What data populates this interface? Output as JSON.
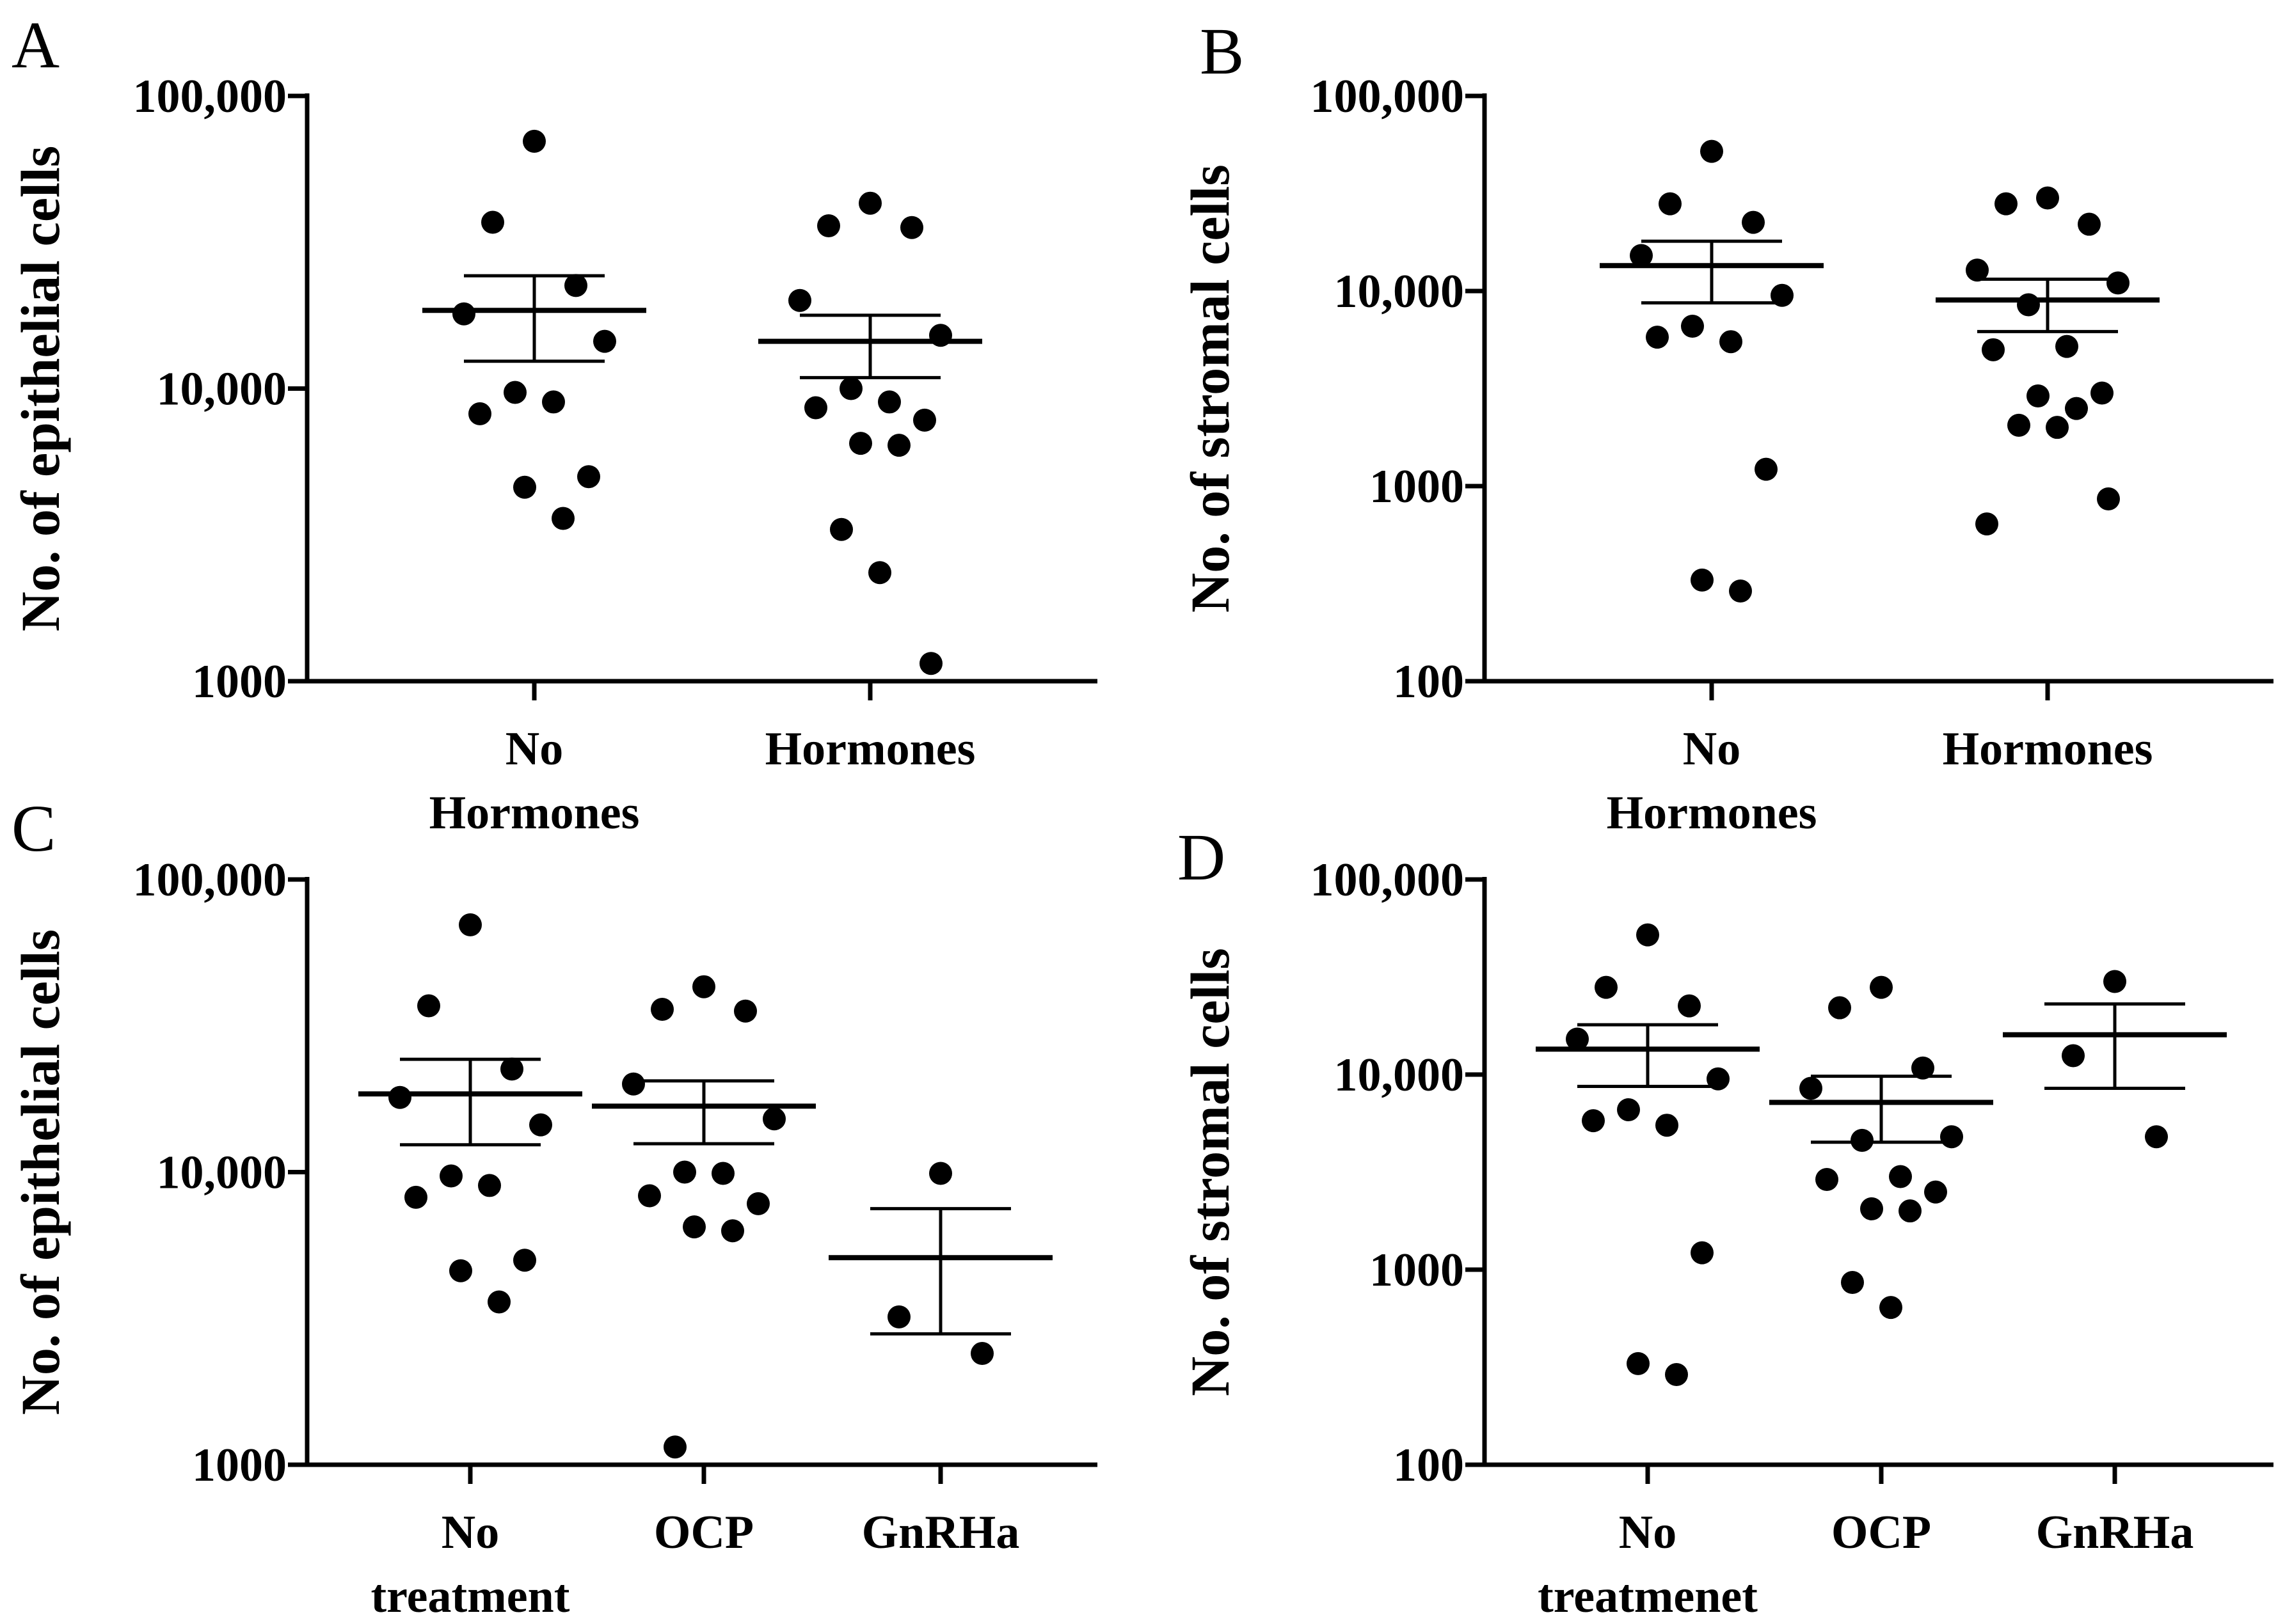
{
  "chart_data": [
    {
      "type": "scatter",
      "panel": "A",
      "ylabel": "No. of epithelial cells",
      "yscale": "log",
      "ylim": [
        1000,
        100000
      ],
      "yticks": [
        {
          "value": 1000,
          "label": "1000"
        },
        {
          "value": 10000,
          "label": "10,000"
        },
        {
          "value": 100000,
          "label": "100,000"
        }
      ],
      "categories": [
        [
          "No",
          "Hormones"
        ],
        [
          "Hormones"
        ]
      ],
      "groups": [
        {
          "values": [
            70000,
            37000,
            22500,
            18000,
            14500,
            9700,
            9000,
            8200,
            5000,
            4600,
            3600
          ],
          "mean": 18500,
          "sem_upper": 24300,
          "sem_lower": 12400
        },
        {
          "values": [
            43000,
            36000,
            35500,
            20000,
            15200,
            10000,
            9000,
            8600,
            7800,
            6500,
            6400,
            3300,
            2350,
            1150
          ],
          "mean": 14500,
          "sem_upper": 17800,
          "sem_lower": 10900
        }
      ]
    },
    {
      "type": "scatter",
      "panel": "B",
      "ylabel": "No. of stromal cells",
      "yscale": "log",
      "ylim": [
        100,
        100000
      ],
      "yticks": [
        {
          "value": 100,
          "label": "100"
        },
        {
          "value": 1000,
          "label": "1000"
        },
        {
          "value": 10000,
          "label": "10,000"
        },
        {
          "value": 100000,
          "label": "100,000"
        }
      ],
      "categories": [
        [
          "No",
          "Hormones"
        ],
        [
          "Hormones"
        ]
      ],
      "groups": [
        {
          "values": [
            52000,
            28000,
            22500,
            15200,
            9500,
            6600,
            5500,
            5800,
            1220,
            330,
            290
          ],
          "mean": 13500,
          "sem_upper": 18000,
          "sem_lower": 8700
        },
        {
          "values": [
            30000,
            28000,
            22000,
            12800,
            11000,
            8500,
            5200,
            5000,
            3000,
            2900,
            2500,
            2050,
            2000,
            860,
            640
          ],
          "mean": 9000,
          "sem_upper": 11500,
          "sem_lower": 6200
        }
      ]
    },
    {
      "type": "scatter",
      "panel": "C",
      "ylabel": "No. of epithelial cells",
      "yscale": "log",
      "ylim": [
        1000,
        100000
      ],
      "yticks": [
        {
          "value": 1000,
          "label": "1000"
        },
        {
          "value": 10000,
          "label": "10,000"
        },
        {
          "value": 100000,
          "label": "100,000"
        }
      ],
      "categories": [
        [
          "No",
          "treatment"
        ],
        [
          "OCP"
        ],
        [
          "GnRHa"
        ]
      ],
      "groups": [
        {
          "values": [
            70000,
            37000,
            22500,
            18000,
            14500,
            9700,
            9000,
            8200,
            5000,
            4600,
            3600
          ],
          "mean": 18500,
          "sem_upper": 24300,
          "sem_lower": 12400
        },
        {
          "values": [
            43000,
            36000,
            35500,
            20000,
            15200,
            10000,
            9900,
            8300,
            7800,
            6500,
            6300,
            1150
          ],
          "mean": 16800,
          "sem_upper": 20500,
          "sem_lower": 12500
        },
        {
          "values": [
            9900,
            3200,
            2400
          ],
          "mean": 5100,
          "sem_upper": 7500,
          "sem_lower": 2800
        }
      ]
    },
    {
      "type": "scatter",
      "panel": "D",
      "ylabel": "No. of stromal cells",
      "yscale": "log",
      "ylim": [
        100,
        100000
      ],
      "yticks": [
        {
          "value": 100,
          "label": "100"
        },
        {
          "value": 1000,
          "label": "1000"
        },
        {
          "value": 10000,
          "label": "10,000"
        },
        {
          "value": 100000,
          "label": "100,000"
        }
      ],
      "categories": [
        [
          "No",
          "treatmenet"
        ],
        [
          "OCP"
        ],
        [
          "GnRHa"
        ]
      ],
      "groups": [
        {
          "values": [
            52000,
            28000,
            22500,
            15200,
            9500,
            6600,
            5500,
            5800,
            1220,
            330,
            290
          ],
          "mean": 13500,
          "sem_upper": 18000,
          "sem_lower": 8700
        },
        {
          "values": [
            28000,
            22000,
            10800,
            8500,
            4800,
            4600,
            3000,
            2900,
            2500,
            2050,
            2000,
            860,
            640
          ],
          "mean": 7200,
          "sem_upper": 9800,
          "sem_lower": 4500
        },
        {
          "values": [
            30000,
            12500,
            4800
          ],
          "mean": 16000,
          "sem_upper": 23000,
          "sem_lower": 8500
        }
      ]
    }
  ]
}
